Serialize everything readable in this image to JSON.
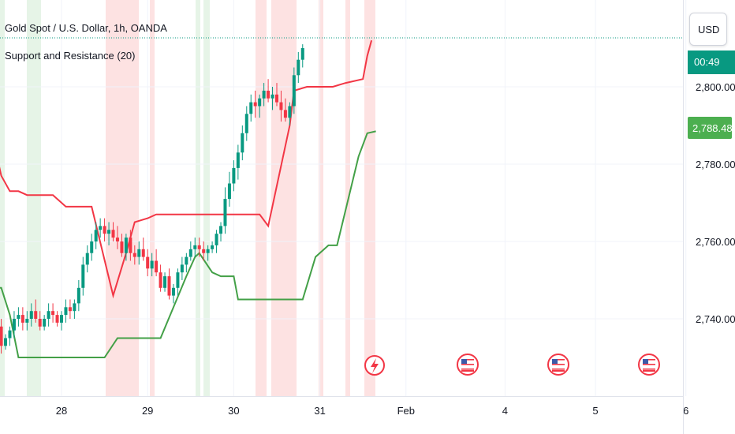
{
  "header": {
    "title": "Gold Spot / U.S. Dollar, 1h, OANDA",
    "indicator": "Support and Resistance (20)"
  },
  "currency_button": {
    "label": "USD"
  },
  "price_badges": {
    "countdown": "00:49",
    "support_value": "2,788.485",
    "current_color": "#089981",
    "support_color": "#4caf50"
  },
  "colors": {
    "up": "#089981",
    "down": "#f23645",
    "resistance": "#f23645",
    "support": "#43a047",
    "band_red": "#fde2e2",
    "band_green": "#e6f4e7"
  },
  "icons": [
    "lightning-icon",
    "us-flag-icon",
    "us-flag-icon",
    "us-flag-icon"
  ],
  "chart_data": {
    "type": "candlestick",
    "title": "Gold Spot / U.S. Dollar, 1h, OANDA",
    "y_ticks": [
      "2,740.000",
      "2,760.000",
      "2,780.000",
      "2,800.000"
    ],
    "x_ticks": [
      "28",
      "29",
      "30",
      "31",
      "Feb",
      "4",
      "5",
      "6"
    ],
    "ylim": [
      2726,
      2812
    ],
    "grid": true,
    "series": [
      {
        "name": "Support and Resistance (20)",
        "resistance": [
          [
            27.0,
            2787
          ],
          [
            27.2,
            2787
          ],
          [
            27.3,
            2777
          ],
          [
            27.4,
            2773
          ],
          [
            27.5,
            2773
          ],
          [
            27.6,
            2772
          ],
          [
            27.9,
            2772
          ],
          [
            28.05,
            2769
          ],
          [
            28.35,
            2769
          ],
          [
            28.6,
            2746
          ],
          [
            28.75,
            2757
          ],
          [
            28.85,
            2765
          ],
          [
            29.0,
            2766
          ],
          [
            29.1,
            2767
          ],
          [
            29.6,
            2767
          ],
          [
            30.3,
            2767
          ],
          [
            30.4,
            2764
          ],
          [
            30.65,
            2790
          ],
          [
            30.7,
            2799
          ],
          [
            30.85,
            2800
          ],
          [
            31.15,
            2800
          ],
          [
            31.3,
            2801
          ],
          [
            31.5,
            2802
          ],
          [
            31.55,
            2808
          ],
          [
            31.6,
            2812
          ]
        ],
        "support": [
          [
            27.0,
            2748
          ],
          [
            27.3,
            2748
          ],
          [
            27.4,
            2741
          ],
          [
            27.5,
            2730
          ],
          [
            27.6,
            2730
          ],
          [
            28.5,
            2730
          ],
          [
            28.65,
            2735
          ],
          [
            29.15,
            2735
          ],
          [
            29.3,
            2743
          ],
          [
            29.45,
            2751
          ],
          [
            29.55,
            2756
          ],
          [
            29.6,
            2757
          ],
          [
            29.75,
            2752
          ],
          [
            29.85,
            2751
          ],
          [
            30.0,
            2751
          ],
          [
            30.05,
            2745
          ],
          [
            30.8,
            2745
          ],
          [
            30.95,
            2756
          ],
          [
            31.1,
            2759
          ],
          [
            31.2,
            2759
          ],
          [
            31.45,
            2782
          ],
          [
            31.55,
            2788
          ],
          [
            31.65,
            2788.485
          ]
        ]
      }
    ],
    "candles": [
      [
        27.0,
        2752,
        2758,
        2749,
        2755
      ],
      [
        27.05,
        2755,
        2765,
        2753,
        2763
      ],
      [
        27.1,
        2763,
        2772,
        2760,
        2770
      ],
      [
        27.15,
        2770,
        2771,
        2757,
        2759
      ],
      [
        27.2,
        2759,
        2760,
        2743,
        2745
      ],
      [
        27.25,
        2745,
        2747,
        2735,
        2738
      ],
      [
        27.3,
        2738,
        2740,
        2731,
        2733
      ],
      [
        27.35,
        2733,
        2736,
        2732,
        2735
      ],
      [
        27.4,
        2735,
        2738,
        2733,
        2737
      ],
      [
        27.45,
        2737,
        2742,
        2735,
        2740
      ],
      [
        27.5,
        2740,
        2743,
        2738,
        2741
      ],
      [
        27.55,
        2741,
        2743,
        2737,
        2739
      ],
      [
        27.6,
        2739,
        2742,
        2737,
        2740
      ],
      [
        27.65,
        2740,
        2744,
        2738,
        2742
      ],
      [
        27.7,
        2742,
        2745,
        2739,
        2740
      ],
      [
        27.75,
        2740,
        2742,
        2737,
        2738
      ],
      [
        27.8,
        2738,
        2741,
        2737,
        2740
      ],
      [
        27.85,
        2740,
        2744,
        2738,
        2742
      ],
      [
        27.9,
        2742,
        2744,
        2739,
        2741
      ],
      [
        27.95,
        2741,
        2742,
        2738,
        2739
      ],
      [
        28.0,
        2739,
        2742,
        2737,
        2741
      ],
      [
        28.05,
        2741,
        2745,
        2739,
        2743
      ],
      [
        28.1,
        2743,
        2745,
        2740,
        2742
      ],
      [
        28.15,
        2742,
        2745,
        2740,
        2744
      ],
      [
        28.2,
        2744,
        2750,
        2742,
        2748
      ],
      [
        28.25,
        2748,
        2756,
        2746,
        2754
      ],
      [
        28.3,
        2754,
        2759,
        2752,
        2757
      ],
      [
        28.35,
        2757,
        2762,
        2755,
        2760
      ],
      [
        28.4,
        2760,
        2765,
        2758,
        2763
      ],
      [
        28.45,
        2763,
        2766,
        2761,
        2764
      ],
      [
        28.5,
        2764,
        2766,
        2760,
        2762
      ],
      [
        28.55,
        2762,
        2765,
        2759,
        2763
      ],
      [
        28.6,
        2763,
        2765,
        2760,
        2761
      ],
      [
        28.65,
        2761,
        2764,
        2758,
        2760
      ],
      [
        28.7,
        2760,
        2762,
        2756,
        2757
      ],
      [
        28.75,
        2757,
        2762,
        2755,
        2761
      ],
      [
        28.8,
        2761,
        2763,
        2755,
        2757
      ],
      [
        28.85,
        2757,
        2759,
        2754,
        2756
      ],
      [
        28.9,
        2756,
        2760,
        2754,
        2758
      ],
      [
        28.95,
        2758,
        2761,
        2755,
        2756
      ],
      [
        29.0,
        2756,
        2758,
        2751,
        2753
      ],
      [
        29.05,
        2753,
        2757,
        2751,
        2755
      ],
      [
        29.1,
        2755,
        2758,
        2751,
        2752
      ],
      [
        29.15,
        2752,
        2754,
        2747,
        2748
      ],
      [
        29.2,
        2748,
        2752,
        2747,
        2751
      ],
      [
        29.25,
        2751,
        2753,
        2745,
        2746
      ],
      [
        29.3,
        2746,
        2749,
        2744,
        2748
      ],
      [
        29.35,
        2748,
        2753,
        2746,
        2752
      ],
      [
        29.4,
        2752,
        2756,
        2750,
        2754
      ],
      [
        29.45,
        2754,
        2757,
        2752,
        2756
      ],
      [
        29.5,
        2756,
        2760,
        2755,
        2758
      ],
      [
        29.55,
        2758,
        2761,
        2756,
        2759
      ],
      [
        29.6,
        2759,
        2761,
        2756,
        2758
      ],
      [
        29.65,
        2758,
        2760,
        2755,
        2757
      ],
      [
        29.7,
        2757,
        2759,
        2755,
        2758
      ],
      [
        29.75,
        2758,
        2760,
        2757,
        2759
      ],
      [
        29.8,
        2759,
        2763,
        2757,
        2762
      ],
      [
        29.85,
        2762,
        2765,
        2760,
        2764
      ],
      [
        29.9,
        2764,
        2774,
        2762,
        2771
      ],
      [
        29.95,
        2771,
        2778,
        2769,
        2775
      ],
      [
        30.0,
        2775,
        2781,
        2773,
        2779
      ],
      [
        30.05,
        2779,
        2785,
        2776,
        2783
      ],
      [
        30.1,
        2783,
        2790,
        2781,
        2788
      ],
      [
        30.15,
        2788,
        2795,
        2786,
        2793
      ],
      [
        30.2,
        2793,
        2798,
        2791,
        2796
      ],
      [
        30.25,
        2796,
        2799,
        2792,
        2795
      ],
      [
        30.3,
        2795,
        2798,
        2792,
        2797
      ],
      [
        30.35,
        2797,
        2801,
        2795,
        2799
      ],
      [
        30.4,
        2799,
        2802,
        2796,
        2797
      ],
      [
        30.45,
        2797,
        2800,
        2794,
        2798
      ],
      [
        30.5,
        2798,
        2801,
        2795,
        2796
      ],
      [
        30.55,
        2796,
        2799,
        2791,
        2794
      ],
      [
        30.6,
        2794,
        2797,
        2791,
        2792
      ],
      [
        30.65,
        2792,
        2796,
        2790,
        2795
      ],
      [
        30.7,
        2795,
        2805,
        2793,
        2803
      ],
      [
        30.75,
        2803,
        2809,
        2801,
        2807
      ],
      [
        30.8,
        2807,
        2811,
        2805,
        2810
      ]
    ]
  }
}
